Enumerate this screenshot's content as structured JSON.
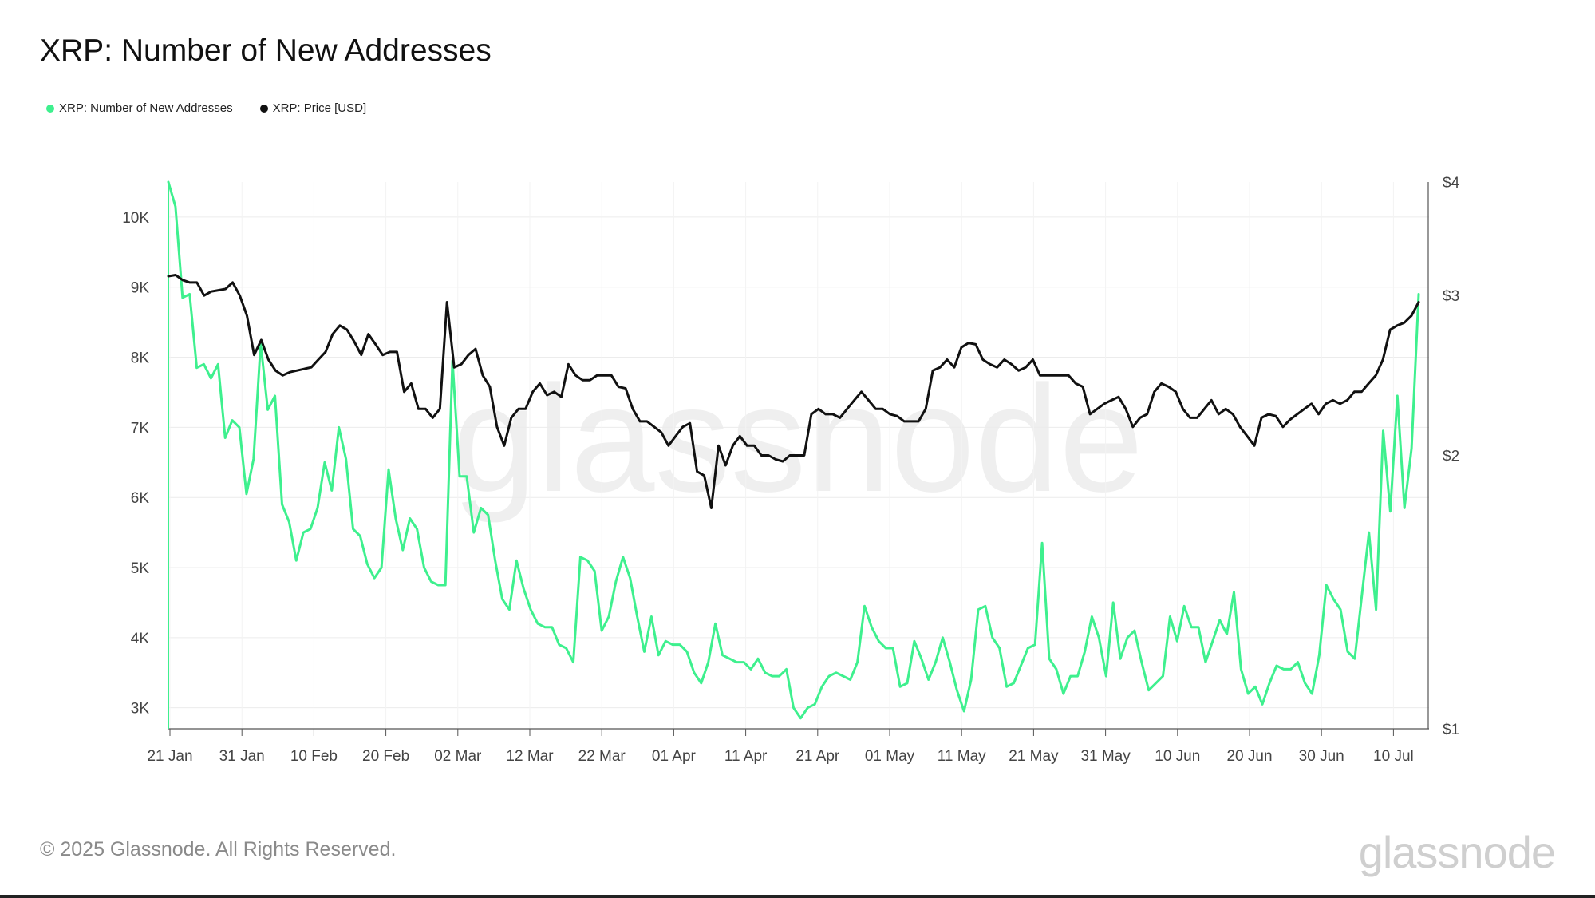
{
  "title": "XRP: Number of New Addresses",
  "legend": [
    {
      "label": "XRP: Number of New Addresses",
      "color": "#3ef08e"
    },
    {
      "label": "XRP: Price [USD]",
      "color": "#111111"
    }
  ],
  "watermark": "glassnode",
  "footer": "© 2025 Glassnode. All Rights Reserved.",
  "brand": "glassnode",
  "chart_data": {
    "type": "line",
    "title": "XRP: Number of New Addresses",
    "x_labels": [
      "21 Jan",
      "31 Jan",
      "10 Feb",
      "20 Feb",
      "02 Mar",
      "12 Mar",
      "22 Mar",
      "01 Apr",
      "11 Apr",
      "21 Apr",
      "01 May",
      "11 May",
      "21 May",
      "31 May",
      "10 Jun",
      "20 Jun",
      "30 Jun",
      "10 Jul"
    ],
    "left_axis": {
      "ticks": [
        "3K",
        "4K",
        "5K",
        "6K",
        "7K",
        "8K",
        "9K",
        "10K"
      ],
      "tick_values": [
        3000,
        4000,
        5000,
        6000,
        7000,
        8000,
        9000,
        10000
      ],
      "ylim": [
        2700,
        10500
      ]
    },
    "right_axis": {
      "ticks": [
        "$1",
        "$2",
        "$3",
        "$4"
      ],
      "tick_values": [
        1,
        2,
        3,
        4
      ],
      "scale": "log",
      "ylim": [
        1,
        4
      ]
    },
    "grid": true,
    "legend_position": "top-left",
    "series": [
      {
        "name": "XRP: Number of New Addresses",
        "axis": "left",
        "color": "#3ef08e",
        "values": [
          10500,
          10150,
          8850,
          8900,
          7850,
          7900,
          7700,
          7900,
          6850,
          7100,
          7000,
          6050,
          6550,
          8200,
          7250,
          7450,
          5900,
          5650,
          5100,
          5500,
          5550,
          5850,
          6500,
          6100,
          7000,
          6550,
          5550,
          5450,
          5050,
          4850,
          5000,
          6400,
          5700,
          5250,
          5700,
          5550,
          5000,
          4800,
          4750,
          4750,
          7950,
          6300,
          6300,
          5500,
          5850,
          5750,
          5100,
          4550,
          4400,
          5100,
          4700,
          4400,
          4200,
          4150,
          4150,
          3900,
          3850,
          3650,
          5150,
          5100,
          4950,
          4100,
          4300,
          4800,
          5150,
          4850,
          4300,
          3800,
          4300,
          3750,
          3950,
          3900,
          3900,
          3800,
          3500,
          3350,
          3650,
          4200,
          3750,
          3700,
          3650,
          3650,
          3550,
          3700,
          3500,
          3450,
          3450,
          3550,
          3000,
          2850,
          3000,
          3050,
          3300,
          3450,
          3500,
          3450,
          3400,
          3650,
          4450,
          4150,
          3950,
          3850,
          3850,
          3300,
          3350,
          3950,
          3700,
          3400,
          3650,
          4000,
          3650,
          3250,
          2950,
          3400,
          4400,
          4450,
          4000,
          3850,
          3300,
          3350,
          3600,
          3850,
          3900,
          5350,
          3700,
          3550,
          3200,
          3450,
          3450,
          3800,
          4300,
          4000,
          3450,
          4500,
          3700,
          4000,
          4100,
          3650,
          3250,
          3350,
          3450,
          4300,
          3950,
          4450,
          4150,
          4150,
          3650,
          3950,
          4250,
          4050,
          4650,
          3550,
          3200,
          3300,
          3050,
          3350,
          3600,
          3550,
          3550,
          3650,
          3350,
          3200,
          3750,
          4750,
          4550,
          4400,
          3800,
          3700,
          4600,
          5500,
          4400,
          6950,
          5800,
          7450,
          5850,
          6700,
          8900
        ]
      },
      {
        "name": "XRP: Price [USD]",
        "axis": "right",
        "color": "#111111",
        "values": [
          3.15,
          3.16,
          3.12,
          3.1,
          3.1,
          3.0,
          3.03,
          3.04,
          3.05,
          3.1,
          3.0,
          2.85,
          2.58,
          2.68,
          2.55,
          2.48,
          2.45,
          2.47,
          2.48,
          2.49,
          2.5,
          2.55,
          2.6,
          2.72,
          2.78,
          2.75,
          2.67,
          2.58,
          2.72,
          2.65,
          2.58,
          2.6,
          2.6,
          2.35,
          2.4,
          2.25,
          2.25,
          2.2,
          2.25,
          2.95,
          2.5,
          2.52,
          2.58,
          2.62,
          2.45,
          2.38,
          2.15,
          2.05,
          2.2,
          2.25,
          2.25,
          2.35,
          2.4,
          2.33,
          2.35,
          2.32,
          2.52,
          2.45,
          2.42,
          2.42,
          2.45,
          2.45,
          2.45,
          2.38,
          2.37,
          2.25,
          2.18,
          2.18,
          2.15,
          2.12,
          2.05,
          2.1,
          2.15,
          2.17,
          1.92,
          1.9,
          1.75,
          2.05,
          1.95,
          2.05,
          2.1,
          2.05,
          2.05,
          2.0,
          2.0,
          1.98,
          1.97,
          2.0,
          2.0,
          2.0,
          2.22,
          2.25,
          2.22,
          2.22,
          2.2,
          2.25,
          2.3,
          2.35,
          2.3,
          2.25,
          2.25,
          2.22,
          2.21,
          2.18,
          2.18,
          2.18,
          2.25,
          2.48,
          2.5,
          2.55,
          2.5,
          2.63,
          2.66,
          2.65,
          2.55,
          2.52,
          2.5,
          2.55,
          2.52,
          2.48,
          2.5,
          2.55,
          2.45,
          2.45,
          2.45,
          2.45,
          2.45,
          2.4,
          2.38,
          2.22,
          2.25,
          2.28,
          2.3,
          2.32,
          2.25,
          2.15,
          2.2,
          2.22,
          2.35,
          2.4,
          2.38,
          2.35,
          2.25,
          2.2,
          2.2,
          2.25,
          2.3,
          2.22,
          2.25,
          2.22,
          2.15,
          2.1,
          2.05,
          2.2,
          2.22,
          2.21,
          2.15,
          2.19,
          2.22,
          2.25,
          2.28,
          2.22,
          2.28,
          2.3,
          2.28,
          2.3,
          2.35,
          2.35,
          2.4,
          2.45,
          2.55,
          2.75,
          2.78,
          2.8,
          2.85,
          2.95
        ]
      }
    ]
  }
}
